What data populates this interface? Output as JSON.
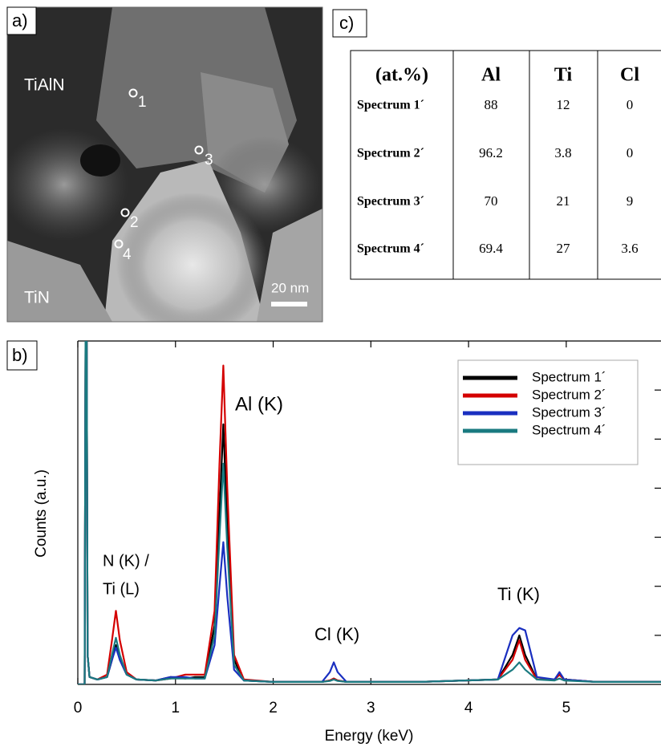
{
  "panel_a": {
    "label": "a)",
    "regions": [
      "TiAlN",
      "TiN"
    ],
    "points": [
      "1",
      "2",
      "3",
      "4"
    ],
    "scale_bar": "20 nm"
  },
  "panel_c": {
    "label": "c)",
    "table": {
      "header": [
        "(at.%)",
        "Al",
        "Ti",
        "Cl"
      ],
      "rows": [
        [
          "Spectrum 1´",
          88,
          12,
          0
        ],
        [
          "Spectrum 2´",
          96.2,
          3.8,
          0
        ],
        [
          "Spectrum 3´",
          70,
          21,
          9
        ],
        [
          "Spectrum 4´",
          69.4,
          27,
          3.6
        ]
      ]
    }
  },
  "chart_data": {
    "type": "line",
    "label": "b)",
    "xlabel": "Energy (keV)",
    "ylabel": "Counts (a.u.)",
    "annotations": [
      "Al (K)",
      "N (K) /",
      "Ti (L)",
      "Cl (K)",
      "Ti (K)"
    ],
    "xlim": [
      0,
      5.97
    ],
    "xticks": [
      0,
      1,
      2,
      3,
      4,
      5
    ],
    "ylim": [
      0,
      7
    ],
    "yticks": [
      1,
      2,
      3,
      4,
      5,
      6
    ],
    "x": [
      0,
      0.07,
      0.08,
      0.09,
      0.1,
      0.12,
      0.2,
      0.3,
      0.35,
      0.39,
      0.43,
      0.5,
      0.6,
      0.8,
      0.95,
      1.1,
      1.2,
      1.3,
      1.4,
      1.45,
      1.49,
      1.53,
      1.6,
      1.7,
      2.0,
      2.5,
      2.58,
      2.62,
      2.66,
      2.75,
      3.5,
      4.3,
      4.45,
      4.52,
      4.58,
      4.7,
      4.88,
      4.93,
      4.98,
      5.3,
      5.97
    ],
    "legend": "upper right",
    "series": [
      {
        "name": "Spectrum 1´",
        "color": "#000000",
        "values": [
          0,
          0,
          7.5,
          7.5,
          0.6,
          0.15,
          0.1,
          0.15,
          0.5,
          0.8,
          0.5,
          0.2,
          0.1,
          0.08,
          0.15,
          0.12,
          0.15,
          0.15,
          1.2,
          3.5,
          5.3,
          3.2,
          0.5,
          0.08,
          0.05,
          0.05,
          0.08,
          0.12,
          0.08,
          0.05,
          0.05,
          0.1,
          0.6,
          1.0,
          0.6,
          0.1,
          0.1,
          0.2,
          0.1,
          0.05,
          0.05
        ]
      },
      {
        "name": "Spectrum 2´",
        "color": "#d40000",
        "values": [
          0,
          0,
          7.5,
          7.5,
          0.6,
          0.15,
          0.1,
          0.2,
          0.9,
          1.5,
          0.9,
          0.25,
          0.1,
          0.08,
          0.12,
          0.2,
          0.2,
          0.2,
          1.5,
          4.5,
          6.5,
          4.0,
          0.6,
          0.1,
          0.05,
          0.05,
          0.08,
          0.12,
          0.08,
          0.05,
          0.05,
          0.1,
          0.5,
          0.9,
          0.5,
          0.1,
          0.1,
          0.2,
          0.1,
          0.05,
          0.05
        ]
      },
      {
        "name": "Spectrum 3´",
        "color": "#1a2fc0",
        "values": [
          0,
          0,
          7.5,
          7.5,
          0.6,
          0.15,
          0.1,
          0.15,
          0.5,
          0.75,
          0.5,
          0.2,
          0.1,
          0.08,
          0.15,
          0.15,
          0.12,
          0.12,
          0.8,
          2.0,
          2.9,
          1.8,
          0.3,
          0.08,
          0.05,
          0.05,
          0.25,
          0.45,
          0.25,
          0.05,
          0.05,
          0.1,
          1.0,
          1.15,
          1.1,
          0.15,
          0.1,
          0.25,
          0.1,
          0.05,
          0.05
        ]
      },
      {
        "name": "Spectrum 4´",
        "color": "#1a7a80",
        "values": [
          0,
          0,
          7.5,
          7.5,
          0.6,
          0.15,
          0.1,
          0.15,
          0.6,
          0.95,
          0.6,
          0.2,
          0.1,
          0.08,
          0.12,
          0.12,
          0.12,
          0.12,
          1.0,
          3.0,
          4.5,
          2.8,
          0.4,
          0.08,
          0.05,
          0.05,
          0.07,
          0.1,
          0.07,
          0.05,
          0.05,
          0.1,
          0.3,
          0.45,
          0.3,
          0.1,
          0.08,
          0.12,
          0.08,
          0.05,
          0.05
        ]
      }
    ]
  }
}
